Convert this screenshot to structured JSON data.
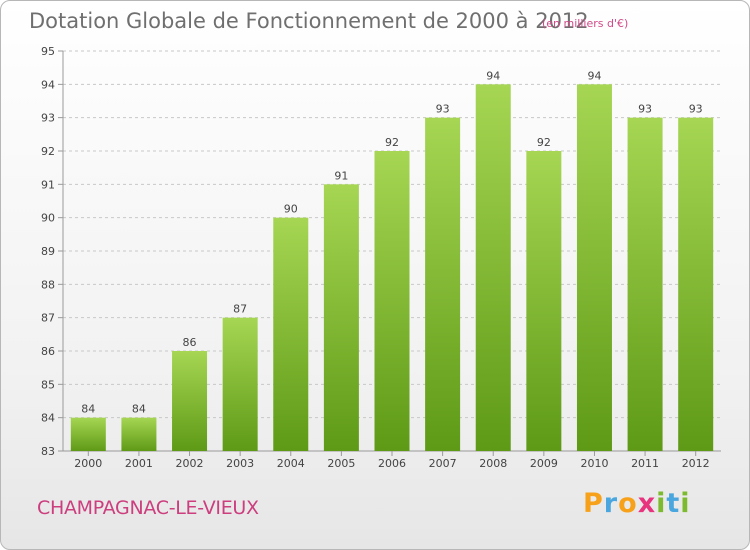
{
  "header": {
    "title": "Dotation Globale de Fonctionnement de 2000 à 2012",
    "subtitle": "(en milliers d'€)"
  },
  "footer": {
    "commune": "CHAMPAGNAC-LE-VIEUX",
    "logo": [
      "P",
      "r",
      "o",
      "x",
      "i",
      "t",
      "i"
    ]
  },
  "colors": {
    "bar_top": "#a6d653",
    "bar_bottom": "#5e9a16",
    "grid": "#c8c8c8",
    "axis": "#9a9a9a",
    "text": "#444444"
  },
  "chart_data": {
    "type": "bar",
    "categories": [
      "2000",
      "2001",
      "2002",
      "2003",
      "2004",
      "2005",
      "2006",
      "2007",
      "2008",
      "2009",
      "2010",
      "2011",
      "2012"
    ],
    "values": [
      84,
      84,
      86,
      87,
      90,
      91,
      92,
      93,
      94,
      92,
      94,
      93,
      93
    ],
    "title": "Dotation Globale de Fonctionnement de 2000 à 2012",
    "ylim": [
      83,
      95
    ],
    "yticks": [
      83,
      84,
      85,
      86,
      87,
      88,
      89,
      90,
      91,
      92,
      93,
      94,
      95
    ],
    "grid": true,
    "data_labels": true
  }
}
